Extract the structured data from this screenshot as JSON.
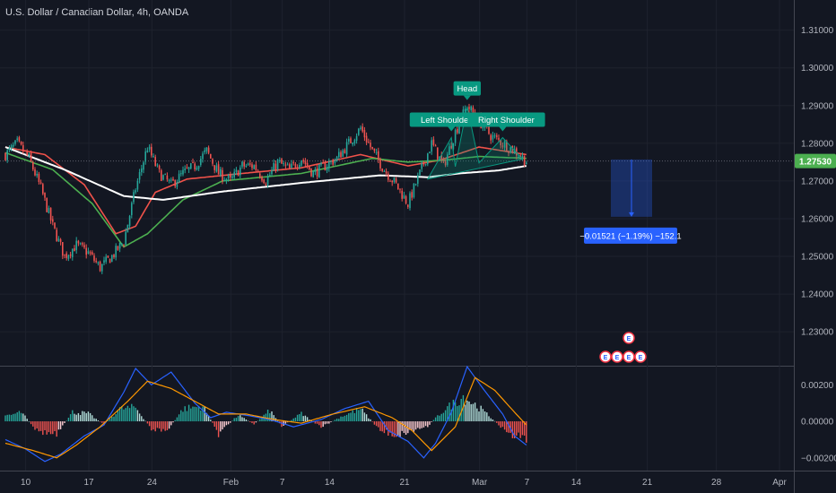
{
  "title": "U.S. Dollar / Canadian Dollar, 4h, OANDA",
  "colors": {
    "background": "#131722",
    "grid": "#1e222d",
    "axis_text": "#b2b5be",
    "up": "#26a69a",
    "down": "#ef5350",
    "ema_fast": "#f0524a",
    "ema_mid": "#4caf50",
    "ema_slow": "#ffffff",
    "pattern": "#089981",
    "projection": "#2962ff",
    "price_label": "#4caf50",
    "macd": "#2962ff",
    "signal": "#ff9800"
  },
  "chart_data": [
    {
      "type": "candlestick",
      "title": "U.S. Dollar / Canadian Dollar, 4h, OANDA",
      "ylim": [
        1.221,
        1.318
      ],
      "y_ticks": [
        "1.31000",
        "1.30000",
        "1.29000",
        "1.28000",
        "1.27000",
        "1.26000",
        "1.25000",
        "1.24000",
        "1.23000"
      ],
      "x_ticks": [
        "10",
        "17",
        "24",
        "Feb",
        "7",
        "14",
        "21",
        "Mar",
        "7",
        "14",
        "21",
        "28",
        "Apr"
      ],
      "last_price": "1.27530",
      "close_path": [
        [
          0,
          1.277
        ],
        [
          6,
          1.28
        ],
        [
          12,
          1.276
        ],
        [
          18,
          1.268
        ],
        [
          24,
          1.258
        ],
        [
          30,
          1.25
        ],
        [
          36,
          1.253
        ],
        [
          42,
          1.251
        ],
        [
          48,
          1.247
        ],
        [
          54,
          1.25
        ],
        [
          60,
          1.254
        ],
        [
          66,
          1.268
        ],
        [
          72,
          1.279
        ],
        [
          78,
          1.272
        ],
        [
          84,
          1.269
        ],
        [
          90,
          1.272
        ],
        [
          96,
          1.274
        ],
        [
          102,
          1.278
        ],
        [
          108,
          1.272
        ],
        [
          114,
          1.27
        ],
        [
          120,
          1.274
        ],
        [
          126,
          1.274
        ],
        [
          132,
          1.27
        ],
        [
          138,
          1.275
        ],
        [
          144,
          1.273
        ],
        [
          150,
          1.276
        ],
        [
          156,
          1.272
        ],
        [
          162,
          1.274
        ],
        [
          168,
          1.276
        ],
        [
          174,
          1.28
        ],
        [
          180,
          1.284
        ],
        [
          186,
          1.278
        ],
        [
          192,
          1.273
        ],
        [
          198,
          1.269
        ],
        [
          204,
          1.264
        ],
        [
          210,
          1.272
        ],
        [
          216,
          1.28
        ],
        [
          222,
          1.274
        ],
        [
          228,
          1.283
        ],
        [
          234,
          1.29
        ],
        [
          240,
          1.286
        ],
        [
          246,
          1.282
        ],
        [
          252,
          1.28
        ],
        [
          258,
          1.278
        ],
        [
          264,
          1.2753
        ]
      ],
      "moving_averages": [
        {
          "color_key": "ema_fast",
          "points": [
            [
              0,
              1.279
            ],
            [
              20,
              1.277
            ],
            [
              40,
              1.269
            ],
            [
              56,
              1.256
            ],
            [
              66,
              1.258
            ],
            [
              76,
              1.267
            ],
            [
              92,
              1.2705
            ],
            [
              120,
              1.272
            ],
            [
              150,
              1.2735
            ],
            [
              180,
              1.277
            ],
            [
              204,
              1.274
            ],
            [
              220,
              1.2755
            ],
            [
              240,
              1.279
            ],
            [
              264,
              1.277
            ]
          ]
        },
        {
          "color_key": "ema_mid",
          "points": [
            [
              0,
              1.2775
            ],
            [
              24,
              1.273
            ],
            [
              44,
              1.264
            ],
            [
              60,
              1.2525
            ],
            [
              72,
              1.256
            ],
            [
              90,
              1.265
            ],
            [
              110,
              1.27
            ],
            [
              150,
              1.272
            ],
            [
              186,
              1.276
            ],
            [
              204,
              1.275
            ],
            [
              222,
              1.2755
            ],
            [
              240,
              1.2765
            ],
            [
              264,
              1.276
            ]
          ]
        },
        {
          "color_key": "ema_slow",
          "points": [
            [
              0,
              1.279
            ],
            [
              30,
              1.273
            ],
            [
              60,
              1.266
            ],
            [
              80,
              1.265
            ],
            [
              110,
              1.2672
            ],
            [
              150,
              1.2695
            ],
            [
              190,
              1.2715
            ],
            [
              214,
              1.271
            ],
            [
              230,
              1.272
            ],
            [
              250,
              1.2728
            ],
            [
              264,
              1.274
            ]
          ]
        }
      ],
      "pattern": {
        "labels": [
          "Left Shoulder",
          "Head",
          "Right Shoulder"
        ],
        "points": [
          [
            214,
            1.2705
          ],
          [
            226,
            1.2815
          ],
          [
            228,
            1.2738
          ],
          [
            234,
            1.2898
          ],
          [
            240,
            1.2748
          ],
          [
            252,
            1.2815
          ],
          [
            262,
            1.2758
          ]
        ]
      },
      "projection": {
        "from_price": 1.2757,
        "to_price": 1.2605,
        "label": "−0.01521 (−1.19%) −152.1"
      },
      "events": [
        "E",
        "E",
        "E",
        "E",
        "E"
      ]
    },
    {
      "type": "bar",
      "title": "",
      "y_ticks": [
        "0.00200",
        "0.00000",
        "−0.00200"
      ],
      "ylim": [
        -0.0027,
        0.003
      ],
      "histogram_path": [
        [
          0,
          0.0003
        ],
        [
          8,
          0.0006
        ],
        [
          16,
          -0.0006
        ],
        [
          26,
          -0.0009
        ],
        [
          34,
          0.0006
        ],
        [
          42,
          0.0005
        ],
        [
          50,
          -0.0002
        ],
        [
          58,
          0.0008
        ],
        [
          66,
          0.0009
        ],
        [
          74,
          -0.0005
        ],
        [
          82,
          -0.0006
        ],
        [
          90,
          0.0008
        ],
        [
          100,
          0.001
        ],
        [
          108,
          -0.0008
        ],
        [
          118,
          0.0004
        ],
        [
          126,
          -0.0002
        ],
        [
          134,
          0.0007
        ],
        [
          140,
          -0.0003
        ],
        [
          150,
          0.0005
        ],
        [
          160,
          -0.0004
        ],
        [
          170,
          0.0003
        ],
        [
          180,
          0.0008
        ],
        [
          190,
          -0.0006
        ],
        [
          198,
          -0.0009
        ],
        [
          206,
          -0.0006
        ],
        [
          214,
          -0.0003
        ],
        [
          222,
          0.0007
        ],
        [
          232,
          0.0016
        ],
        [
          240,
          0.0009
        ],
        [
          250,
          -0.0002
        ],
        [
          256,
          -0.0009
        ],
        [
          264,
          -0.0011
        ]
      ],
      "macd_line": [
        [
          0,
          -0.001
        ],
        [
          10,
          -0.0015
        ],
        [
          20,
          -0.0022
        ],
        [
          28,
          -0.0018
        ],
        [
          40,
          -0.0008
        ],
        [
          50,
          -0.0002
        ],
        [
          60,
          0.0016
        ],
        [
          66,
          0.0029
        ],
        [
          74,
          0.002
        ],
        [
          84,
          0.0027
        ],
        [
          96,
          0.001
        ],
        [
          104,
          0.0002
        ],
        [
          112,
          0.0005
        ],
        [
          124,
          0.0003
        ],
        [
          134,
          0.0001
        ],
        [
          146,
          -0.0003
        ],
        [
          160,
          0.0001
        ],
        [
          172,
          0.0007
        ],
        [
          184,
          0.0011
        ],
        [
          194,
          -0.0005
        ],
        [
          204,
          -0.0011
        ],
        [
          212,
          -0.002
        ],
        [
          218,
          -0.0012
        ],
        [
          226,
          0.0005
        ],
        [
          234,
          0.003
        ],
        [
          242,
          0.0018
        ],
        [
          252,
          0.0004
        ],
        [
          258,
          -0.0008
        ],
        [
          264,
          -0.0013
        ]
      ],
      "signal_line": [
        [
          0,
          -0.0012
        ],
        [
          14,
          -0.0016
        ],
        [
          26,
          -0.002
        ],
        [
          36,
          -0.0013
        ],
        [
          48,
          -0.0003
        ],
        [
          62,
          0.0011
        ],
        [
          72,
          0.0022
        ],
        [
          84,
          0.0018
        ],
        [
          96,
          0.0011
        ],
        [
          108,
          0.0004
        ],
        [
          122,
          0.0004
        ],
        [
          136,
          0.0001
        ],
        [
          150,
          -0.0001
        ],
        [
          166,
          0.0004
        ],
        [
          182,
          0.0008
        ],
        [
          196,
          0.0002
        ],
        [
          206,
          -0.0005
        ],
        [
          216,
          -0.0016
        ],
        [
          228,
          -0.0003
        ],
        [
          238,
          0.0024
        ],
        [
          248,
          0.0017
        ],
        [
          258,
          0.0005
        ],
        [
          264,
          -0.0002
        ]
      ]
    }
  ]
}
